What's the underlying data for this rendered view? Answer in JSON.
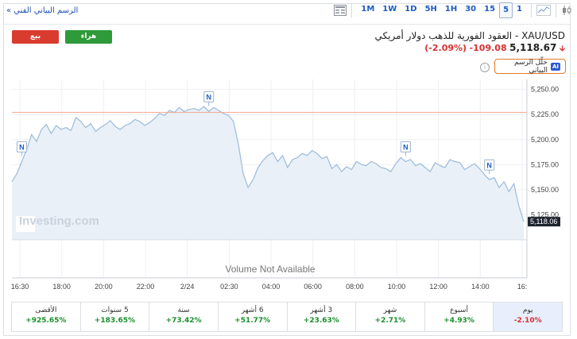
{
  "header": {
    "tech_chart_link": "الرسم البياني الفني »",
    "timeframes": [
      "1M",
      "1W",
      "1D",
      "5H",
      "1H",
      "30",
      "15",
      "5",
      "1"
    ],
    "active_timeframe": "5"
  },
  "trade": {
    "sell_label": "بيع",
    "buy_label": "هراء"
  },
  "instrument": {
    "title": "XAU/USD - العقود الفورية للذهب دولار أمريكي",
    "price": "5,118.67",
    "change": "-109.08",
    "change_pct": "(-2.09%)",
    "ai_button_label": "حلّل الرسم البياني",
    "ai_badge": "AI",
    "info_glyph": "i"
  },
  "chart_data": {
    "type": "area",
    "instrument": "XAU/USD",
    "last_value": 5118.06,
    "last_value_label": "5,118.06",
    "reference_line": 5227,
    "ylim": [
      5100,
      5260
    ],
    "y_ticks": [
      5250,
      5225,
      5200,
      5175,
      5150,
      5125
    ],
    "y_tick_labels": [
      "5,250.00",
      "5,225.00",
      "5,200.00",
      "5,175.00",
      "5,150.00",
      "5,125.00"
    ],
    "x_tick_labels": [
      "16:30",
      "18:00",
      "20:00",
      "22:00",
      "2/24",
      "02:30",
      "04:00",
      "06:00",
      "08:00",
      "10:00",
      "12:00",
      "14:00",
      "16:"
    ],
    "volume_text": "Volume Not Available",
    "watermark": "Investing.com",
    "news_markers": [
      "N",
      "N",
      "N",
      "N"
    ],
    "series": [
      {
        "values": [
          5158,
          5166,
          5178,
          5190,
          5205,
          5198,
          5210,
          5215,
          5206,
          5214,
          5210,
          5212,
          5209,
          5222,
          5218,
          5212,
          5216,
          5208,
          5212,
          5215,
          5219,
          5213,
          5210,
          5214,
          5216,
          5220,
          5218,
          5214,
          5217,
          5221,
          5226,
          5224,
          5229,
          5227,
          5232,
          5228,
          5230,
          5231,
          5229,
          5233,
          5228,
          5232,
          5229,
          5226,
          5224,
          5218,
          5196,
          5166,
          5152,
          5160,
          5172,
          5179,
          5184,
          5187,
          5178,
          5184,
          5172,
          5180,
          5182,
          5186,
          5184,
          5189,
          5186,
          5181,
          5183,
          5171,
          5175,
          5168,
          5173,
          5170,
          5178,
          5175,
          5174,
          5178,
          5176,
          5172,
          5171,
          5168,
          5176,
          5182,
          5178,
          5180,
          5174,
          5176,
          5172,
          5168,
          5177,
          5174,
          5172,
          5180,
          5178,
          5177,
          5170,
          5173,
          5176,
          5171,
          5165,
          5160,
          5162,
          5152,
          5158,
          5148,
          5156,
          5134,
          5118
        ]
      }
    ]
  },
  "stats": [
    {
      "label": "الأقصى",
      "value": "+925.65%",
      "positive": true
    },
    {
      "label": "5 سنوات",
      "value": "+183.65%",
      "positive": true
    },
    {
      "label": "سنة",
      "value": "+73.42%",
      "positive": true
    },
    {
      "label": "6 أشهر",
      "value": "+51.77%",
      "positive": true
    },
    {
      "label": "3 أشهر",
      "value": "+23.63%",
      "positive": true
    },
    {
      "label": "شهر",
      "value": "+2.71%",
      "positive": true
    },
    {
      "label": "أسبوع",
      "value": "+4.93%",
      "positive": true
    },
    {
      "label": "يوم",
      "value": "-2.10%",
      "positive": false,
      "active": true
    }
  ],
  "colors": {
    "line": "#9bbbd8",
    "fill": "#e9f0f8",
    "ref_line": "#f2a48a",
    "accent": "#1d5bbf"
  }
}
